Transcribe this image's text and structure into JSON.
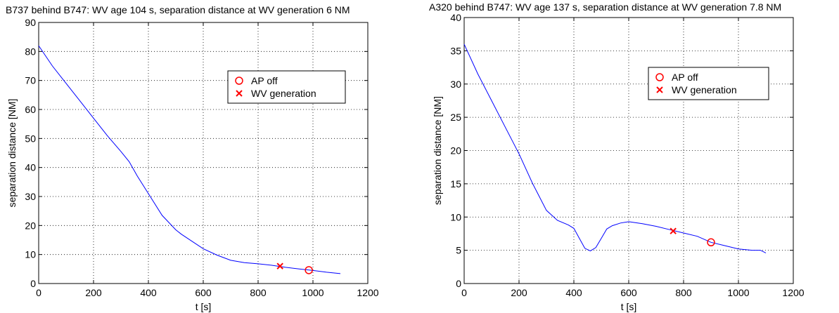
{
  "chart_data": [
    {
      "type": "line",
      "title": "B737 behind B747: WV age 104 s, separation distance at WV generation 6 NM",
      "xlabel": "t [s]",
      "ylabel": "separation distance [NM]",
      "xlim": [
        0,
        1200
      ],
      "ylim": [
        0,
        90
      ],
      "xticks": [
        0,
        200,
        400,
        600,
        800,
        1000,
        1200
      ],
      "yticks": [
        0,
        10,
        20,
        30,
        40,
        50,
        60,
        70,
        80,
        90
      ],
      "grid": true,
      "legend_position": "upper-right",
      "series": [
        {
          "kind": "line",
          "color": "#0000ff",
          "x": [
            0,
            50,
            100,
            150,
            200,
            250,
            300,
            330,
            360,
            400,
            450,
            500,
            520,
            560,
            600,
            650,
            700,
            750,
            800,
            850,
            900,
            950,
            1000,
            1050,
            1100
          ],
          "y": [
            82,
            75,
            69,
            63,
            57,
            51,
            45.5,
            42,
            37,
            31,
            23.5,
            18.5,
            17,
            14.5,
            12,
            9.8,
            8,
            7.2,
            6.8,
            6.3,
            5.6,
            5,
            4.5,
            3.9,
            3.4
          ]
        },
        {
          "kind": "marker",
          "name": "AP off",
          "marker": "circle",
          "color": "#ff0000",
          "x": [
            985
          ],
          "y": [
            4.6
          ]
        },
        {
          "kind": "marker",
          "name": "WV generation",
          "marker": "cross",
          "color": "#ff0000",
          "x": [
            880
          ],
          "y": [
            6
          ]
        }
      ]
    },
    {
      "type": "line",
      "title": "A320 behind B747: WV age 137 s, separation distance at WV generation 7.8 NM",
      "xlabel": "t [s]",
      "ylabel": "separation distance [NM]",
      "xlim": [
        0,
        1200
      ],
      "ylim": [
        0,
        40
      ],
      "xticks": [
        0,
        200,
        400,
        600,
        800,
        1000,
        1200
      ],
      "yticks": [
        0,
        5,
        10,
        15,
        20,
        25,
        30,
        35,
        40
      ],
      "grid": true,
      "legend_position": "upper-right",
      "series": [
        {
          "kind": "line",
          "color": "#0000ff",
          "x": [
            0,
            50,
            100,
            150,
            200,
            250,
            300,
            340,
            380,
            400,
            420,
            440,
            460,
            480,
            500,
            520,
            540,
            570,
            600,
            650,
            700,
            750,
            800,
            850,
            900,
            950,
            1000,
            1050,
            1080,
            1100
          ],
          "y": [
            36,
            31.5,
            27.5,
            23.5,
            19.5,
            15,
            11,
            9.5,
            8.8,
            8.3,
            6.8,
            5.3,
            4.9,
            5.4,
            6.8,
            8.2,
            8.7,
            9.1,
            9.3,
            9,
            8.6,
            8.1,
            7.6,
            7.1,
            6.2,
            5.7,
            5.2,
            5.0,
            5.0,
            4.6
          ]
        },
        {
          "kind": "marker",
          "name": "AP off",
          "marker": "circle",
          "color": "#ff0000",
          "x": [
            900
          ],
          "y": [
            6.2
          ]
        },
        {
          "kind": "marker",
          "name": "WV generation",
          "marker": "cross",
          "color": "#ff0000",
          "x": [
            762
          ],
          "y": [
            7.9
          ]
        }
      ]
    }
  ]
}
